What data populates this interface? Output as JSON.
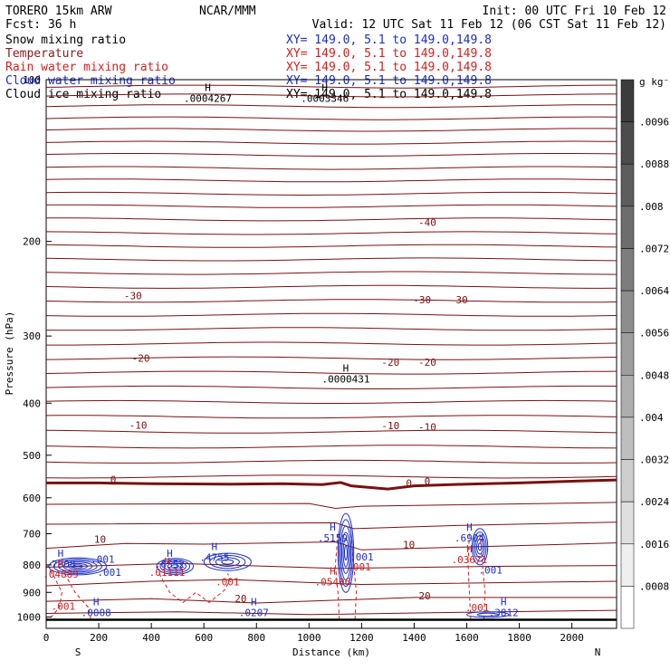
{
  "header": {
    "title_left": "TORERO  15km ARW",
    "center": "NCAR/MMM",
    "init": "Init: 00 UTC Fri 10 Feb 12",
    "fcst": "Fcst:   36 h",
    "valid": "Valid: 12 UTC Sat 11 Feb 12 (06 CST Sat 11 Feb 12)"
  },
  "legend": [
    {
      "label": "Snow mixing ratio",
      "xy": "XY= 149.0,  5.1 to 149.0,149.8",
      "color": "#000000"
    },
    {
      "label": "Temperature",
      "xy": "XY= 149.0,  5.1 to 149.0,149.8",
      "color": "#8b1a1a"
    },
    {
      "label": "Rain water mixing ratio",
      "xy": "XY= 149.0,  5.1 to 149.0,149.8",
      "color": "#d42020"
    },
    {
      "label": "Cloud water mixing ratio",
      "xy": "XY= 149.0,  5.1 to 149.0,149.8",
      "color": "#1a2ec8"
    },
    {
      "label": "Cloud ice mixing ratio",
      "xy": "XY= 149.0,  5.1 to 149.0,149.8",
      "color": "#000000"
    }
  ],
  "colors": {
    "temperature": "#7a1010",
    "rain": "#d42020",
    "cloud": "#1a2ec8",
    "ice": "#000000"
  },
  "chart_data": {
    "type": "contour",
    "xlabel": "Distance (km)",
    "ylabel": "Pressure (hPa)",
    "xlim": [
      0,
      2170
    ],
    "ylim": [
      100,
      1050
    ],
    "y_scale": "log",
    "x_ticks": [
      0,
      200,
      400,
      600,
      800,
      1000,
      1200,
      1400,
      1600,
      1800,
      2000
    ],
    "y_ticks": [
      100,
      200,
      300,
      400,
      500,
      600,
      700,
      800,
      900,
      1000
    ],
    "direction_left": "S",
    "direction_right": "N",
    "colorbar": {
      "unit": "g kg⁻¹",
      "ticks": [
        ".0096",
        ".0088",
        ".008",
        ".0072",
        ".0064",
        ".0056",
        ".0048",
        ".004",
        ".0032",
        ".0024",
        ".0016",
        ".0008"
      ],
      "values": [
        0.0096,
        0.0088,
        0.008,
        0.0072,
        0.0064,
        0.0056,
        0.0048,
        0.004,
        0.0032,
        0.0024,
        0.0016,
        0.0008
      ]
    },
    "temperature_labels": [
      {
        "text": "-40",
        "x": 1450,
        "p": 187
      },
      {
        "text": "-30",
        "x": 330,
        "p": 256
      },
      {
        "text": "-30",
        "x": 1430,
        "p": 261
      },
      {
        "text": "-30",
        "x": 1570,
        "p": 261
      },
      {
        "text": "-20",
        "x": 360,
        "p": 335
      },
      {
        "text": "-20",
        "x": 1310,
        "p": 341
      },
      {
        "text": "-20",
        "x": 1450,
        "p": 341
      },
      {
        "text": "-10",
        "x": 350,
        "p": 446
      },
      {
        "text": "-10",
        "x": 1310,
        "p": 447
      },
      {
        "text": "-10",
        "x": 1450,
        "p": 450
      },
      {
        "text": "0",
        "x": 255,
        "p": 563
      },
      {
        "text": "0",
        "x": 1380,
        "p": 572
      },
      {
        "text": "0",
        "x": 1450,
        "p": 568
      },
      {
        "text": "10",
        "x": 205,
        "p": 727
      },
      {
        "text": "10",
        "x": 1380,
        "p": 745
      },
      {
        "text": "20",
        "x": 740,
        "p": 938
      },
      {
        "text": "20",
        "x": 1440,
        "p": 927
      }
    ],
    "cloud_labels": [
      {
        "text": ".001",
        "x": 215,
        "p": 793
      },
      {
        "text": ".001",
        "x": 1200,
        "p": 785
      },
      {
        "text": ".001",
        "x": 1690,
        "p": 830
      },
      {
        "text": ".001",
        "x": 240,
        "p": 839
      }
    ],
    "rain_labels": [
      {
        "text": ".001",
        "x": 1190,
        "p": 819
      },
      {
        "text": ".001",
        "x": 690,
        "p": 874
      },
      {
        "text": ".001",
        "x": 65,
        "p": 970
      },
      {
        "text": ".001",
        "x": 1640,
        "p": 975
      }
    ],
    "maxima": [
      {
        "text": ".0004267",
        "x": 615,
        "p": 110,
        "color": "#000000"
      },
      {
        "text": ".0003346",
        "x": 1060,
        "p": 110,
        "color": "#000000"
      },
      {
        "text": ".0000431",
        "x": 1140,
        "p": 366,
        "color": "#000000"
      },
      {
        "text": ".7908",
        "x": 55,
        "p": 810,
        "color": "#1a2ec8"
      },
      {
        "text": ".04889",
        "x": 55,
        "p": 845,
        "color": "#d42020"
      },
      {
        "text": ".6552",
        "x": 470,
        "p": 810,
        "color": "#1a2ec8"
      },
      {
        "text": ".01111",
        "x": 460,
        "p": 839,
        "color": "#d42020"
      },
      {
        "text": ".4755",
        "x": 640,
        "p": 786,
        "color": "#1a2ec8"
      },
      {
        "text": ".5159",
        "x": 1090,
        "p": 723,
        "color": "#1a2ec8"
      },
      {
        "text": ".05406",
        "x": 1090,
        "p": 873,
        "color": "#d42020"
      },
      {
        "text": ".6904",
        "x": 1610,
        "p": 723,
        "color": "#1a2ec8"
      },
      {
        "text": ".03671",
        "x": 1610,
        "p": 794,
        "color": "#d42020"
      },
      {
        "text": ".0008",
        "x": 190,
        "p": 997,
        "color": "#1a2ec8"
      },
      {
        "text": ".0207",
        "x": 790,
        "p": 997,
        "color": "#1a2ec8"
      },
      {
        "text": ".3812",
        "x": 1740,
        "p": 997,
        "color": "#1a2ec8"
      }
    ]
  }
}
